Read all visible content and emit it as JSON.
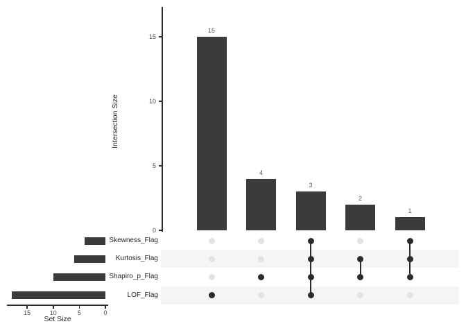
{
  "colors": {
    "background": "#ffffff",
    "bar": "#3b3b3b",
    "dot_active": "#2b2b2b",
    "dot_inactive": "#e3e3e3",
    "stripe": "#f5f5f5",
    "axis_line": "#2b2b2b",
    "tick_text": "#4d4d4d",
    "label_text": "#262626",
    "value_text": "#595959"
  },
  "chart_data": {
    "type": "upset",
    "intersection_bars": {
      "ylabel": "Intersection Size",
      "yticks": [
        0,
        5,
        10,
        15
      ],
      "ylim": [
        0,
        17
      ],
      "values": [
        15,
        4,
        3,
        2,
        1
      ],
      "value_labels": [
        "15",
        "4",
        "3",
        "2",
        "1"
      ]
    },
    "sets": [
      {
        "name": "Skewness_Flag",
        "size": 4
      },
      {
        "name": "Kurtosis_Flag",
        "size": 6
      },
      {
        "name": "Shapiro_p_Flag",
        "size": 10
      },
      {
        "name": "LOF_Flag",
        "size": 18
      }
    ],
    "set_size_axis": {
      "label": "Set Size",
      "ticks": [
        15,
        10,
        5,
        0
      ],
      "max": 18
    },
    "memberships": [
      [
        "LOF_Flag"
      ],
      [
        "Shapiro_p_Flag"
      ],
      [
        "Skewness_Flag",
        "Kurtosis_Flag",
        "Shapiro_p_Flag",
        "LOF_Flag"
      ],
      [
        "Kurtosis_Flag",
        "Shapiro_p_Flag"
      ],
      [
        "Skewness_Flag",
        "Kurtosis_Flag",
        "Shapiro_p_Flag"
      ]
    ]
  }
}
